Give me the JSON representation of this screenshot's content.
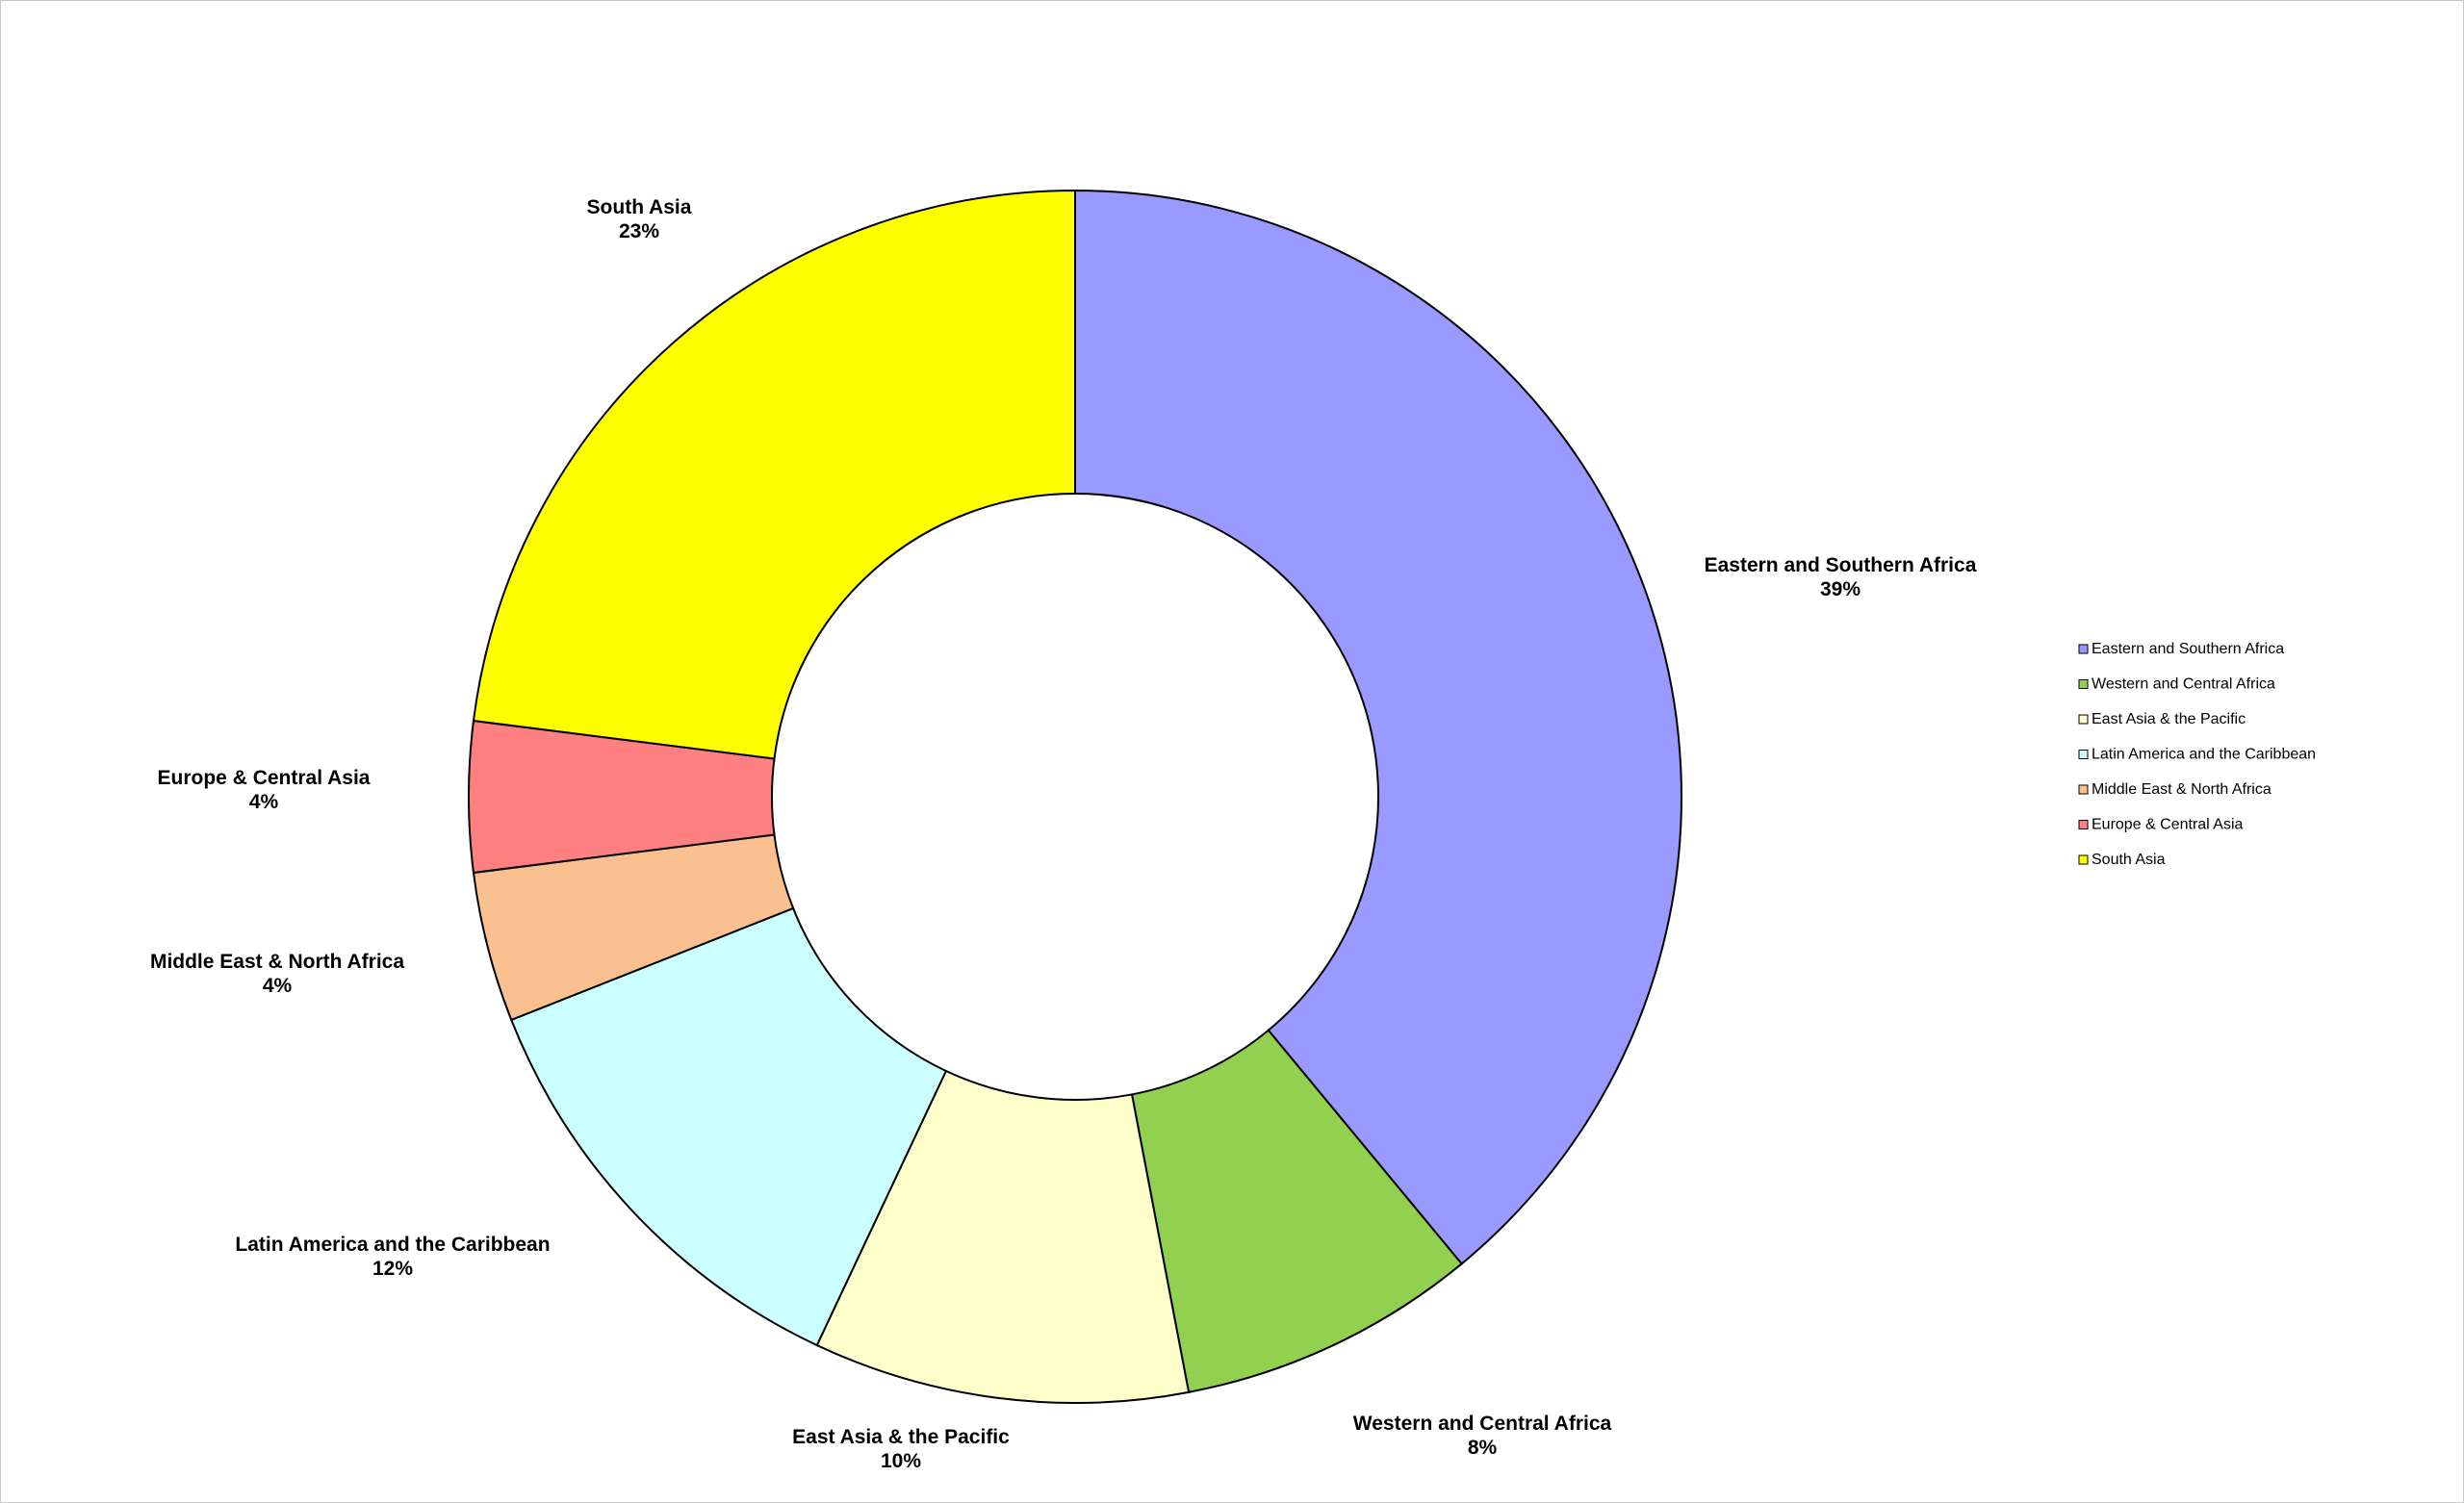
{
  "chart_data": {
    "type": "pie",
    "donut": true,
    "categories": [
      "Eastern and Southern Africa",
      "Western and Central Africa",
      "East Asia & the Pacific",
      "Latin America and the Caribbean",
      "Middle East & North Africa",
      "Europe & Central Asia",
      "South Asia"
    ],
    "values": [
      39,
      8,
      10,
      12,
      4,
      4,
      23
    ],
    "value_labels": [
      "39%",
      "8%",
      "10%",
      "12%",
      "4%",
      "4%",
      "23%"
    ],
    "colors": [
      "#9999ff",
      "#92d050",
      "#ffffcc",
      "#ccffff",
      "#fac090",
      "#ff8080",
      "#ffff00"
    ],
    "title": "",
    "legend": {
      "position": "right",
      "entries": [
        "Eastern and Southern Africa",
        "Western and Central Africa",
        "East Asia & the Pacific",
        "Latin America and the Caribbean",
        "Middle East & North Africa",
        "Europe & Central Asia",
        "South Asia"
      ]
    }
  }
}
